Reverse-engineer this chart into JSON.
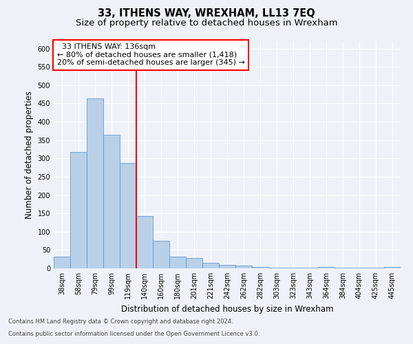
{
  "title": "33, ITHENS WAY, WREXHAM, LL13 7EQ",
  "subtitle": "Size of property relative to detached houses in Wrexham",
  "xlabel": "Distribution of detached houses by size in Wrexham",
  "ylabel": "Number of detached properties",
  "footnote1": "Contains HM Land Registry data © Crown copyright and database right 2024.",
  "footnote2": "Contains public sector information licensed under the Open Government Licence v3.0.",
  "annotation_line1": "  33 ITHENS WAY: 136sqm  ",
  "annotation_line2": "← 80% of detached houses are smaller (1,418)",
  "annotation_line3": "20% of semi-detached houses are larger (345) →",
  "bar_labels": [
    "38sqm",
    "58sqm",
    "79sqm",
    "99sqm",
    "119sqm",
    "140sqm",
    "160sqm",
    "180sqm",
    "201sqm",
    "221sqm",
    "242sqm",
    "262sqm",
    "282sqm",
    "303sqm",
    "323sqm",
    "343sqm",
    "364sqm",
    "384sqm",
    "404sqm",
    "425sqm",
    "445sqm"
  ],
  "bar_values": [
    32,
    317,
    465,
    365,
    287,
    142,
    75,
    32,
    29,
    15,
    9,
    7,
    3,
    2,
    2,
    2,
    4,
    1,
    1,
    1,
    4
  ],
  "bar_color": "#b8d0e8",
  "bar_edge_color": "#6699cc",
  "red_line_index": 5,
  "ylim": [
    0,
    620
  ],
  "yticks": [
    0,
    50,
    100,
    150,
    200,
    250,
    300,
    350,
    400,
    450,
    500,
    550,
    600
  ],
  "background_color": "#eef2f8",
  "plot_bg_color": "#eef2f8",
  "grid_color": "#ffffff",
  "title_fontsize": 10.5,
  "subtitle_fontsize": 9.5,
  "annotation_fontsize": 8,
  "tick_fontsize": 7,
  "ylabel_fontsize": 8.5,
  "xlabel_fontsize": 8.5,
  "footnote_fontsize": 6.0
}
